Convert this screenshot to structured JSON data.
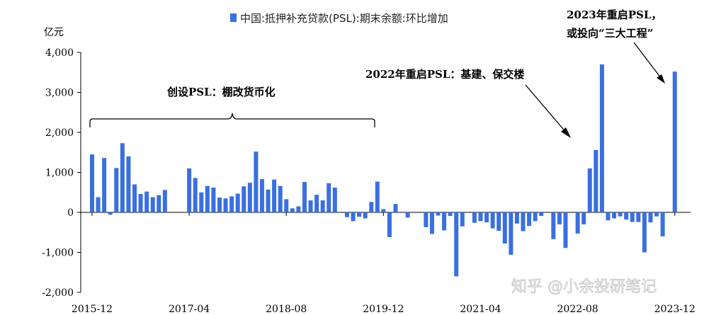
{
  "chart_data": {
    "type": "bar",
    "unit_label": "亿元",
    "legend": {
      "label": "中国:抵押补充贷款(PSL):期末余额:环比增加",
      "color": "#3a6fe0",
      "position": "top"
    },
    "ylim": [
      -2000,
      4000
    ],
    "y_ticks": [
      4000,
      3000,
      2000,
      1000,
      0,
      -1000,
      -2000
    ],
    "y_tick_labels": [
      "4,000",
      "3,000",
      "2,000",
      "1,000",
      "0",
      "-1,000",
      "-2,000"
    ],
    "x_tick_labels": [
      "2015-12",
      "2017-04",
      "2018-08",
      "2019-12",
      "2021-04",
      "2022-08",
      "2023-12"
    ],
    "x_tick_indices": [
      0,
      16,
      32,
      48,
      64,
      80,
      96
    ],
    "series": [
      {
        "color": "#3a6fe0",
        "values": [
          1450,
          380,
          1360,
          -60,
          1110,
          1730,
          1400,
          700,
          460,
          520,
          380,
          430,
          560,
          0,
          0,
          0,
          1100,
          860,
          500,
          660,
          620,
          370,
          350,
          400,
          470,
          650,
          740,
          1520,
          830,
          570,
          820,
          660,
          330,
          100,
          150,
          760,
          300,
          440,
          300,
          730,
          620,
          0,
          -120,
          -220,
          -110,
          -150,
          260,
          770,
          80,
          -620,
          210,
          0,
          -130,
          0,
          0,
          -370,
          -540,
          -80,
          -450,
          -90,
          -1600,
          -350,
          0,
          -260,
          -220,
          -250,
          -400,
          -460,
          -780,
          -1060,
          -280,
          -470,
          -340,
          -220,
          -90,
          0,
          -670,
          -300,
          -890,
          0,
          -530,
          -300,
          1100,
          1560,
          3700,
          -200,
          -150,
          -100,
          -180,
          -240,
          -240,
          -1000,
          -250,
          -100,
          -600,
          0,
          3520
        ]
      }
    ],
    "annotations": [
      {
        "id": "psl-2015",
        "text": "创设PSL：棚改货币化"
      },
      {
        "id": "psl-2022",
        "text": "2022年重启PSL：基建、保交楼"
      },
      {
        "id": "psl-2023-line1",
        "text": "2023年重启PSL，"
      },
      {
        "id": "psl-2023-line2",
        "text": "或投向“三大工程”"
      }
    ]
  },
  "watermark": "知乎 @小余投研笔记"
}
